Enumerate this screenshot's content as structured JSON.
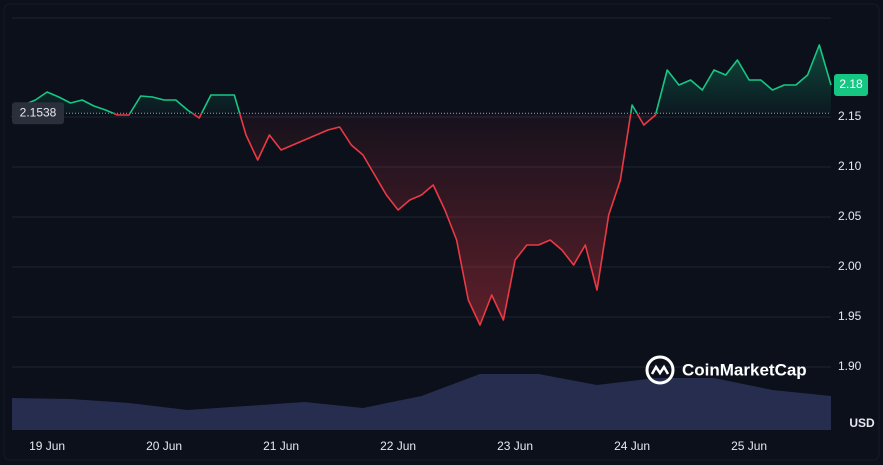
{
  "chart_data": {
    "type": "line",
    "brand": "CoinMarketCap",
    "currency": "USD",
    "reference_value": 2.1538,
    "last_value_label": "2.18",
    "up_color": "#16c784",
    "down_color": "#ea3943",
    "grid": true,
    "ylim": [
      1.837,
      2.257
    ],
    "yticks": [
      {
        "value": 1.9,
        "label": "1.90"
      },
      1.95,
      {
        "value": 2,
        "label": "2.00"
      },
      2.05,
      {
        "value": 2.1,
        "label": "2.10"
      },
      2.15
    ],
    "categories": [
      null,
      null,
      null,
      "19 Jun",
      null,
      null,
      null,
      null,
      null,
      null,
      null,
      null,
      null,
      "20 Jun",
      null,
      null,
      null,
      null,
      null,
      null,
      null,
      null,
      null,
      "21 Jun",
      null,
      null,
      null,
      null,
      null,
      null,
      null,
      null,
      null,
      "22 Jun",
      null,
      null,
      null,
      null,
      null,
      null,
      null,
      null,
      null,
      "23 Jun",
      null,
      null,
      null,
      null,
      null,
      null,
      null,
      null,
      null,
      "24 Jun",
      null,
      null,
      null,
      null,
      null,
      null,
      null,
      null,
      null,
      "25 Jun",
      null,
      null,
      null,
      null,
      null,
      null,
      null
    ],
    "values": [
      2.15,
      2.162,
      2.167,
      2.175,
      2.17,
      2.164,
      2.167,
      2.161,
      2.157,
      2.152,
      2.152,
      2.171,
      2.17,
      2.167,
      2.167,
      2.157,
      2.149,
      2.172,
      2.172,
      2.172,
      2.132,
      2.107,
      2.132,
      2.117,
      2.122,
      2.127,
      2.132,
      2.137,
      2.14,
      2.122,
      2.112,
      2.092,
      2.072,
      2.057,
      2.067,
      2.072,
      2.082,
      2.057,
      2.027,
      1.967,
      1.942,
      1.972,
      1.947,
      2.007,
      2.022,
      2.022,
      2.027,
      2.017,
      2.002,
      2.022,
      1.977,
      2.052,
      2.087,
      2.162,
      2.142,
      2.152,
      2.197,
      2.182,
      2.187,
      2.177,
      2.197,
      2.192,
      2.207,
      2.187,
      2.187,
      2.177,
      2.182,
      2.182,
      2.192,
      2.222,
      2.182
    ],
    "volume": {
      "color": "#2b3357",
      "lim": [
        0,
        100
      ],
      "values": [
        32,
        31,
        27,
        20,
        24,
        28,
        22,
        34,
        56,
        56,
        45,
        52,
        52,
        40,
        34
      ]
    }
  }
}
